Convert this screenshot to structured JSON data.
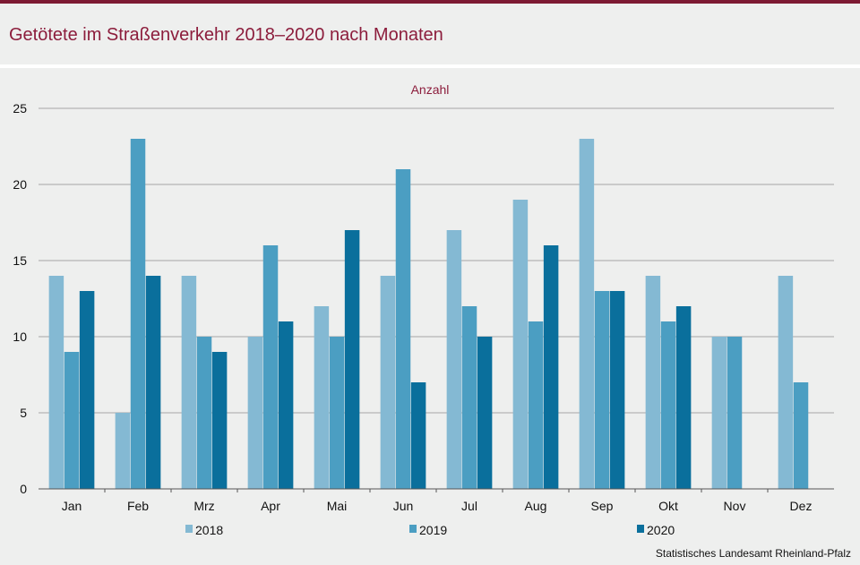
{
  "title": "Getötete im Straßenverkehr 2018–2020 nach Monaten",
  "source": "Statistisches Landesamt  Rheinland-Pfalz",
  "colors": {
    "title": "#8c1d3c",
    "topbar": "#7d1a33",
    "background": "#eeefee",
    "grid": "#a6a6a6"
  },
  "chart_data": {
    "type": "bar",
    "ylabel": "Anzahl",
    "ylim": [
      0,
      25
    ],
    "yticks": [
      0,
      5,
      10,
      15,
      20,
      25
    ],
    "grid": true,
    "legend_position": "bottom",
    "categories": [
      "Jan",
      "Feb",
      "Mrz",
      "Apr",
      "Mai",
      "Jun",
      "Jul",
      "Aug",
      "Sep",
      "Okt",
      "Nov",
      "Dez"
    ],
    "series": [
      {
        "name": "2018",
        "color": "#84b9d3",
        "values": [
          14,
          5,
          14,
          10,
          12,
          14,
          17,
          19,
          23,
          14,
          10,
          14
        ]
      },
      {
        "name": "2019",
        "color": "#4b9ec2",
        "values": [
          9,
          23,
          10,
          16,
          10,
          21,
          12,
          11,
          13,
          11,
          10,
          7
        ]
      },
      {
        "name": "2020",
        "color": "#0a6f9c",
        "values": [
          13,
          14,
          9,
          11,
          17,
          7,
          10,
          16,
          13,
          12,
          null,
          null
        ]
      }
    ]
  }
}
